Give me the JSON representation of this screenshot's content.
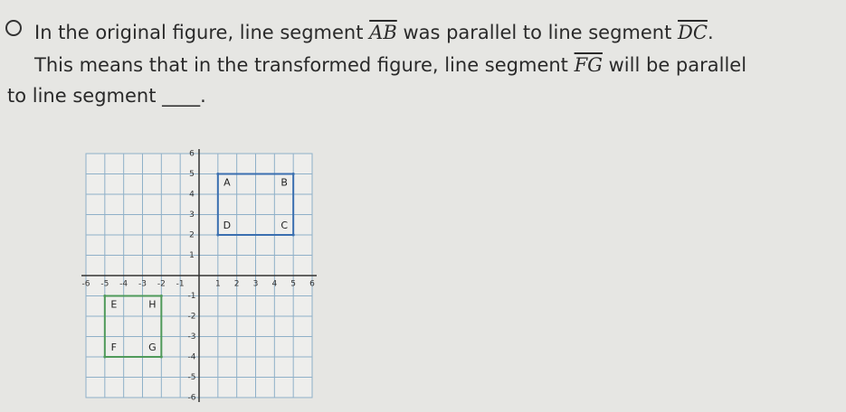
{
  "question": {
    "line1": [
      "In the original figure, line segment ",
      "AB",
      " was parallel to line segment ",
      "DC",
      "."
    ],
    "line2": [
      "This means that in the transformed figure, line segment ",
      "FG",
      " will be parallel"
    ],
    "line3": [
      "to line segment ",
      "____",
      "."
    ]
  },
  "figure": {
    "xlim": [
      -6,
      6
    ],
    "ylim": [
      -6,
      6
    ],
    "xticks": [
      -6,
      -5,
      -4,
      -3,
      -2,
      -1,
      1,
      2,
      3,
      4,
      5,
      6
    ],
    "yticks": [
      6,
      5,
      4,
      3,
      2,
      1,
      -1,
      -2,
      -3,
      -4,
      -5,
      -6
    ],
    "shapes": [
      {
        "color": "#3a6fb0",
        "points": [
          {
            "label": "A",
            "x": 1,
            "y": 5
          },
          {
            "label": "B",
            "x": 5,
            "y": 5
          },
          {
            "label": "C",
            "x": 5,
            "y": 2
          },
          {
            "label": "D",
            "x": 1,
            "y": 2
          }
        ]
      },
      {
        "color": "#4f9a5a",
        "points": [
          {
            "label": "E",
            "x": -5,
            "y": -1
          },
          {
            "label": "H",
            "x": -2,
            "y": -1
          },
          {
            "label": "G",
            "x": -2,
            "y": -4
          },
          {
            "label": "F",
            "x": -5,
            "y": -4
          }
        ]
      }
    ]
  }
}
